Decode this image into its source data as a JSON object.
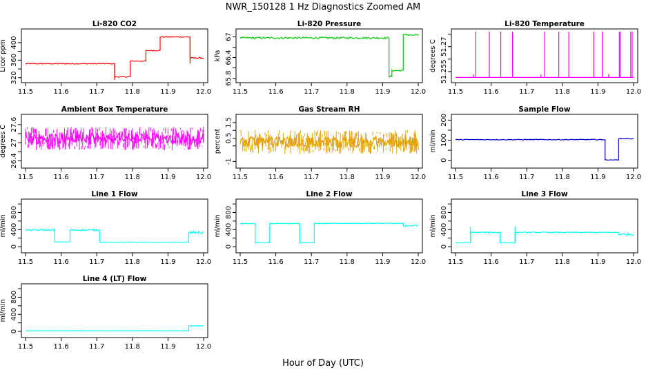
{
  "figure": {
    "title": "NWR_150128  1 Hz Diagnostics Zoomed AM",
    "xlabel": "Hour of Day (UTC)"
  },
  "chart_data": [
    {
      "id": "co2",
      "type": "line",
      "title": "Li-820 CO2",
      "ylabel": "Licor ppm",
      "color": "#ff0000",
      "xlim": [
        11.5,
        12.0
      ],
      "ylim": [
        315,
        425
      ],
      "xticks": [
        11.5,
        11.6,
        11.7,
        11.8,
        11.9,
        12.0
      ],
      "yticks": [
        320,
        360,
        400
      ],
      "yticks_minor": [
        340,
        380
      ],
      "segments": [
        {
          "x": [
            11.5,
            11.75
          ],
          "y": 352,
          "noise": 1
        },
        {
          "x": [
            11.75,
            11.794
          ],
          "y": 322,
          "noise": 1
        },
        {
          "x": [
            11.794,
            11.838
          ],
          "y": 358,
          "noise": 1
        },
        {
          "x": [
            11.838,
            11.878
          ],
          "y": 382,
          "noise": 1
        },
        {
          "x": [
            11.878,
            11.962
          ],
          "y": 413,
          "noise": 1
        },
        {
          "x": [
            11.962,
            12.0
          ],
          "y": 365,
          "noise": 1.5
        }
      ],
      "spikes": [
        {
          "x": 11.75,
          "y": 315
        },
        {
          "x": 11.962,
          "y": 352
        }
      ]
    },
    {
      "id": "pressure",
      "type": "line",
      "title": "Li-820 Pressure",
      "ylabel": "kPa",
      "color": "#00cc00",
      "xlim": [
        11.5,
        12.0
      ],
      "ylim": [
        65.75,
        67.15
      ],
      "xticks": [
        11.5,
        11.6,
        11.7,
        11.8,
        11.9,
        12.0
      ],
      "yticks": [
        65.8,
        66.4,
        67.0
      ],
      "yticks_minor": [
        66.1,
        66.7
      ],
      "segments": [
        {
          "x": [
            11.5,
            11.918
          ],
          "y": 66.97,
          "noise": 0.025
        },
        {
          "x": [
            11.918,
            11.926
          ],
          "y": 65.85,
          "noise": 0.02
        },
        {
          "x": [
            11.926,
            11.958
          ],
          "y": 66.02,
          "noise": 0.02
        },
        {
          "x": [
            11.958,
            11.968
          ],
          "y": 67.08,
          "noise": 0.02
        },
        {
          "x": [
            11.968,
            12.0
          ],
          "y": 67.05,
          "noise": 0.02
        }
      ],
      "spikes": []
    },
    {
      "id": "licor_temp",
      "type": "line",
      "title": "Li-820 Temperature",
      "ylabel": "degrees C",
      "color": "#ff00ff",
      "xlim": [
        11.5,
        12.0
      ],
      "ylim": [
        51.25,
        51.279
      ],
      "xticks": [
        11.5,
        11.6,
        11.7,
        11.8,
        11.9,
        12.0
      ],
      "yticks": [
        51.255,
        51.27
      ],
      "yticks_minor": [
        51.2625,
        51.2775
      ],
      "segments": [
        {
          "x": [
            11.5,
            12.0
          ],
          "y": 51.2515,
          "noise": 0
        }
      ],
      "spikes": [
        {
          "x": 11.557,
          "y": 51.279
        },
        {
          "x": 11.595,
          "y": 51.279
        },
        {
          "x": 11.627,
          "y": 51.279
        },
        {
          "x": 11.66,
          "y": 51.279
        },
        {
          "x": 11.75,
          "y": 51.279
        },
        {
          "x": 11.79,
          "y": 51.279
        },
        {
          "x": 11.818,
          "y": 51.279
        },
        {
          "x": 11.888,
          "y": 51.279
        },
        {
          "x": 11.912,
          "y": 51.279
        },
        {
          "x": 11.96,
          "y": 51.279
        },
        {
          "x": 11.963,
          "y": 51.279
        },
        {
          "x": 11.992,
          "y": 51.279
        },
        {
          "x": 11.996,
          "y": 51.279
        },
        {
          "x": 11.55,
          "y": 51.2535
        },
        {
          "x": 11.74,
          "y": 51.2535
        },
        {
          "x": 11.93,
          "y": 51.2535
        }
      ]
    },
    {
      "id": "ambient_temp",
      "type": "line",
      "title": "Ambient Box Temperature",
      "ylabel": "degrees C",
      "color": "#ff00ff",
      "xlim": [
        11.5,
        12.0
      ],
      "ylim": [
        26.25,
        27.85
      ],
      "xticks": [
        11.5,
        11.6,
        11.7,
        11.8,
        11.9,
        12.0
      ],
      "yticks": [
        26.4,
        27.0,
        27.6
      ],
      "yticks_minor": [
        26.7,
        27.3
      ],
      "segments": [
        {
          "x": [
            11.5,
            12.0
          ],
          "y": 27.15,
          "noise": 0.18,
          "style": "band"
        }
      ],
      "spikes": []
    },
    {
      "id": "rh",
      "type": "line",
      "title": "Gas Stream RH",
      "ylabel": "percent",
      "color": "#e6a000",
      "xlim": [
        11.5,
        12.0
      ],
      "ylim": [
        -1.25,
        1.85
      ],
      "xticks": [
        11.5,
        11.6,
        11.7,
        11.8,
        11.9,
        12.0
      ],
      "yticks": [
        -1.0,
        0.5,
        1.5
      ],
      "yticks_minor": [
        0.0,
        1.0
      ],
      "segments": [
        {
          "x": [
            11.5,
            12.0
          ],
          "y": 0.25,
          "noise": 0.35,
          "style": "band"
        }
      ],
      "spikes": []
    },
    {
      "id": "sample_flow",
      "type": "line",
      "title": "Sample Flow",
      "ylabel": "ml/min",
      "color": "#0000cc",
      "xlim": [
        11.5,
        12.0
      ],
      "ylim": [
        -25,
        215
      ],
      "xticks": [
        11.5,
        11.6,
        11.7,
        11.8,
        11.9,
        12.0
      ],
      "yticks": [
        0,
        100,
        200
      ],
      "yticks_minor": [
        50,
        150
      ],
      "segments": [
        {
          "x": [
            11.5,
            11.92
          ],
          "y": 103,
          "noise": 2
        },
        {
          "x": [
            11.92,
            11.958
          ],
          "y": 2,
          "noise": 1
        },
        {
          "x": [
            11.958,
            12.0
          ],
          "y": 108,
          "noise": 2
        }
      ],
      "spikes": []
    },
    {
      "id": "line1_flow",
      "type": "line",
      "title": "Line 1 Flow",
      "ylabel": "ml/min",
      "color": "#00ffff",
      "xlim": [
        11.5,
        12.0
      ],
      "ylim": [
        -80,
        1050
      ],
      "xticks": [
        11.5,
        11.6,
        11.7,
        11.8,
        11.9,
        12.0
      ],
      "yticks": [
        0,
        400,
        800
      ],
      "yticks_minor": [
        200,
        600,
        1000
      ],
      "segments": [
        {
          "x": [
            11.5,
            11.582
          ],
          "y": 390,
          "noise": 18
        },
        {
          "x": [
            11.582,
            11.625
          ],
          "y": 110,
          "noise": 4
        },
        {
          "x": [
            11.625,
            11.708
          ],
          "y": 390,
          "noise": 18
        },
        {
          "x": [
            11.708,
            11.958
          ],
          "y": 105,
          "noise": 4
        },
        {
          "x": [
            11.958,
            12.0
          ],
          "y": 330,
          "noise": 30
        }
      ],
      "spikes": []
    },
    {
      "id": "line2_flow",
      "type": "line",
      "title": "Line 2 Flow",
      "ylabel": "ml/min",
      "color": "#00ffff",
      "xlim": [
        11.5,
        12.0
      ],
      "ylim": [
        -80,
        1050
      ],
      "xticks": [
        11.5,
        11.6,
        11.7,
        11.8,
        11.9,
        12.0
      ],
      "yticks": [
        0,
        400,
        800
      ],
      "yticks_minor": [
        200,
        600,
        1000
      ],
      "segments": [
        {
          "x": [
            11.5,
            11.542
          ],
          "y": 540,
          "noise": 10
        },
        {
          "x": [
            11.542,
            11.583
          ],
          "y": 90,
          "noise": 3
        },
        {
          "x": [
            11.583,
            11.667
          ],
          "y": 540,
          "noise": 10
        },
        {
          "x": [
            11.667,
            11.708
          ],
          "y": 90,
          "noise": 3
        },
        {
          "x": [
            11.708,
            11.958
          ],
          "y": 545,
          "noise": 8
        },
        {
          "x": [
            11.958,
            12.0
          ],
          "y": 490,
          "noise": 18
        }
      ],
      "spikes": []
    },
    {
      "id": "line3_flow",
      "type": "line",
      "title": "Line 3 Flow",
      "ylabel": "ml/min",
      "color": "#00ffff",
      "xlim": [
        11.5,
        12.0
      ],
      "ylim": [
        -80,
        1050
      ],
      "xticks": [
        11.5,
        11.6,
        11.7,
        11.8,
        11.9,
        12.0
      ],
      "yticks": [
        0,
        400,
        800
      ],
      "yticks_minor": [
        200,
        600,
        1000
      ],
      "segments": [
        {
          "x": [
            11.5,
            11.542
          ],
          "y": 90,
          "noise": 3
        },
        {
          "x": [
            11.542,
            11.625
          ],
          "y": 335,
          "noise": 12
        },
        {
          "x": [
            11.625,
            11.667
          ],
          "y": 90,
          "noise": 3
        },
        {
          "x": [
            11.667,
            11.958
          ],
          "y": 335,
          "noise": 10
        },
        {
          "x": [
            11.958,
            12.0
          ],
          "y": 290,
          "noise": 25
        }
      ],
      "spikes": [
        {
          "x": 11.542,
          "y": 460
        },
        {
          "x": 11.667,
          "y": 470
        }
      ]
    },
    {
      "id": "line4_flow",
      "type": "line",
      "title": "Line 4 (LT) Flow",
      "ylabel": "ml/min",
      "color": "#00ffff",
      "xlim": [
        11.5,
        12.0
      ],
      "ylim": [
        -80,
        1050
      ],
      "xticks": [
        11.5,
        11.6,
        11.7,
        11.8,
        11.9,
        12.0
      ],
      "yticks": [
        0,
        400,
        800
      ],
      "yticks_minor": [
        200,
        600,
        1000
      ],
      "segments": [
        {
          "x": [
            11.5,
            11.958
          ],
          "y": 15,
          "noise": 1
        },
        {
          "x": [
            11.958,
            12.0
          ],
          "y": 130,
          "noise": 2
        }
      ],
      "spikes": []
    }
  ]
}
